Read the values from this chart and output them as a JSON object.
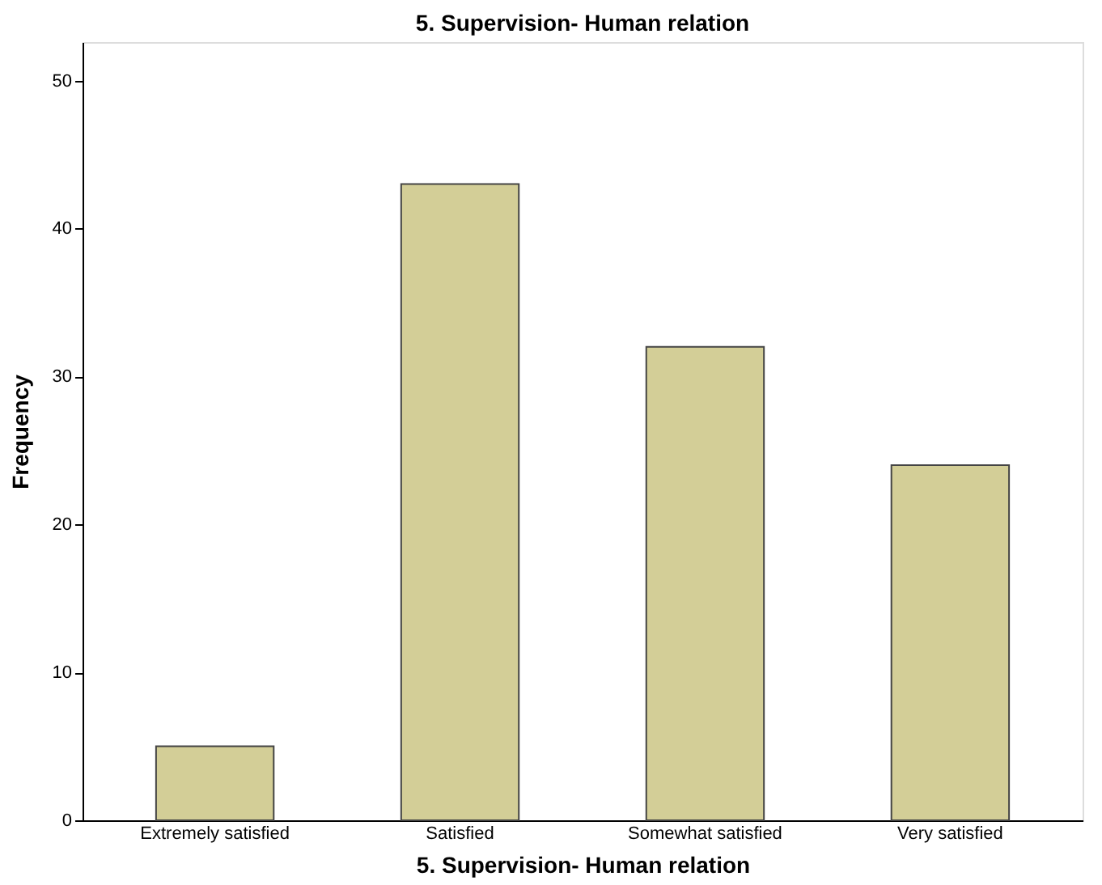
{
  "chart_data": {
    "type": "bar",
    "title": "5. Supervision- Human relation",
    "xlabel": "5. Supervision- Human relation",
    "ylabel": "Frequency",
    "categories": [
      "Extremely satisfied",
      "Satisfied",
      "Somewhat satisfied",
      "Very satisfied"
    ],
    "values": [
      5,
      43,
      32,
      24
    ],
    "color": "#d3ce97",
    "ylim": [
      0,
      52.6
    ],
    "yticks": [
      0,
      10,
      20,
      30,
      40,
      50
    ],
    "grid": false
  }
}
